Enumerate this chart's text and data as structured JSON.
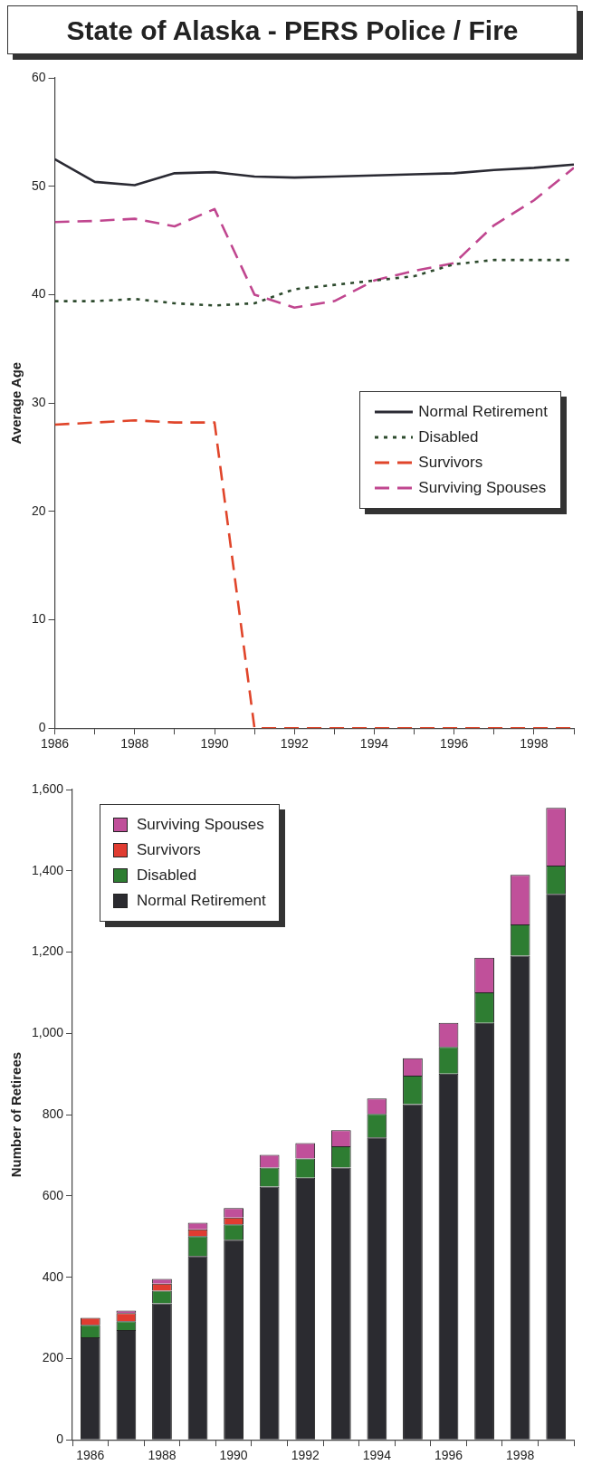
{
  "chart_data": [
    {
      "type": "line",
      "title": "State of Alaska - PERS Police / Fire",
      "ylabel": "Average Age",
      "x": [
        1986,
        1987,
        1988,
        1989,
        1990,
        1991,
        1992,
        1993,
        1994,
        1995,
        1996,
        1997,
        1998,
        1999
      ],
      "xlim": [
        1986,
        1999
      ],
      "xticks": [
        1986,
        {
          "value": 1987,
          "label": null
        },
        1988,
        {
          "value": 1989,
          "label": null
        },
        1990,
        {
          "value": 1991,
          "label": null
        },
        1992,
        {
          "value": 1993,
          "label": null
        },
        1994,
        {
          "value": 1995,
          "label": null
        },
        1996,
        {
          "value": 1997,
          "label": null
        },
        1998,
        {
          "value": 1999,
          "label": null
        }
      ],
      "ylim": [
        0,
        60
      ],
      "yticks": [
        0,
        10,
        20,
        30,
        40,
        50,
        60
      ],
      "grid": false,
      "legend": "right",
      "series": [
        {
          "name": "Normal Retirement",
          "color": "#2a2a33",
          "line_style": "solid",
          "values": [
            52.5,
            50.4,
            50.1,
            51.2,
            51.3,
            50.9,
            50.8,
            50.9,
            51,
            51.1,
            51.2,
            51.5,
            51.7,
            52
          ]
        },
        {
          "name": "Disabled",
          "color": "#2d4a2d",
          "line_style": "dotted",
          "values": [
            39.4,
            39.4,
            39.6,
            39.2,
            39,
            39.2,
            40.5,
            40.9,
            41.3,
            41.7,
            42.8,
            43.2,
            43.2,
            43.2
          ]
        },
        {
          "name": "Survivors",
          "color": "#e0452a",
          "line_style": "dashed",
          "values": [
            28,
            28.2,
            28.4,
            28.2,
            28.2,
            0,
            0,
            0,
            0,
            0,
            0,
            0,
            0,
            0
          ]
        },
        {
          "name": "Surviving Spouses",
          "color": "#c0468f",
          "line_style": "dashed",
          "values": [
            46.7,
            46.8,
            47,
            46.3,
            47.9,
            40,
            38.8,
            39.4,
            41.3,
            42.2,
            42.9,
            46.4,
            48.7,
            51.7
          ]
        }
      ]
    },
    {
      "type": "bar",
      "ylabel": "Number of Retirees",
      "categories": [
        "1986",
        null,
        "1988",
        null,
        "1990",
        null,
        "1992",
        null,
        "1994",
        null,
        "1996",
        null,
        "1998",
        null
      ],
      "stacked": true,
      "ylim": [
        0,
        1600
      ],
      "yticks": [
        0,
        200,
        400,
        600,
        800,
        {
          "value": 1000,
          "label": "1,000"
        },
        {
          "value": 1200,
          "label": "1,200"
        },
        {
          "value": 1400,
          "label": "1,400"
        },
        {
          "value": 1600,
          "label": "1,600"
        }
      ],
      "grid": false,
      "legend": "top left",
      "series": [
        {
          "name": "Normal Retirement",
          "color": "#2b2b30",
          "values": [
            252,
            270,
            336,
            452,
            492,
            623,
            645,
            670,
            744,
            826,
            901,
            1026,
            1191,
            1343
          ]
        },
        {
          "name": "Disabled",
          "color": "#2e7d32",
          "values": [
            31,
            22,
            31,
            49,
            38,
            47,
            47,
            52,
            58,
            70,
            66,
            75,
            77,
            70
          ]
        },
        {
          "name": "Survivors",
          "color": "#e03c31",
          "values": [
            17,
            20,
            17,
            17,
            17,
            0,
            0,
            0,
            0,
            0,
            0,
            0,
            0,
            0
          ]
        },
        {
          "name": "Surviving Spouses",
          "color": "#c0509a",
          "values": [
            null,
            6,
            12,
            16,
            23,
            31,
            38,
            40,
            38,
            43,
            59,
            85,
            122,
            142
          ]
        }
      ]
    }
  ]
}
